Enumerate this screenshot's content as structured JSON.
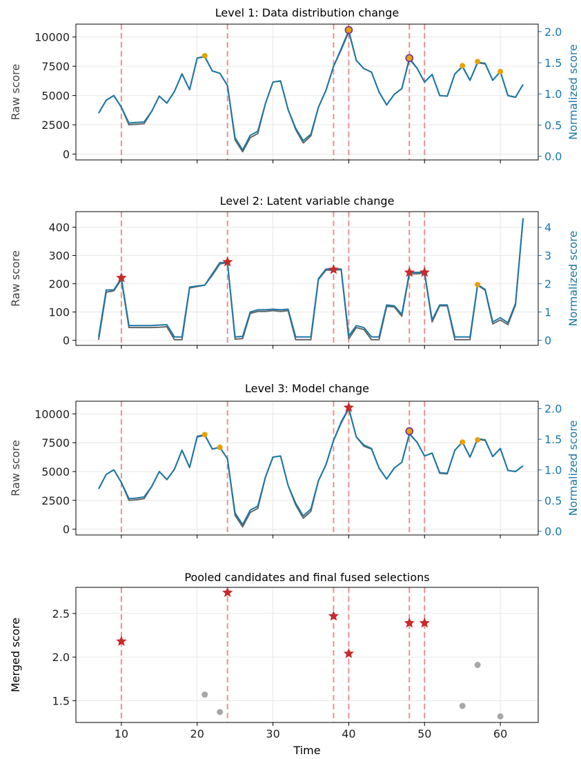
{
  "colors": {
    "score_line": "#1a78a8",
    "raw_line": "#666666",
    "right_axis": "#1a78a8",
    "candidate_marker": "#e8a100",
    "candidate_outline": "#6a2ea0",
    "star_marker": "#c92a2a",
    "vline": "#e89090",
    "gray_marker": "#a8a8a8"
  },
  "chart_data": [
    {
      "type": "line",
      "title": "Level 1: Data distribution change",
      "ylabel": "Raw score",
      "y2label": "Normalized score",
      "ylim": [
        -500,
        11100
      ],
      "y2lim": [
        -0.06,
        2.12
      ],
      "yticks": [
        "0",
        "2500",
        "5000",
        "7500",
        "10000"
      ],
      "y2ticks": [
        "0.0",
        "0.5",
        "1.0",
        "1.5",
        "2.0"
      ],
      "vlines": [
        10,
        24,
        38,
        40,
        48,
        50
      ],
      "x": [
        7,
        8,
        9,
        10,
        11,
        12,
        13,
        14,
        15,
        16,
        17,
        18,
        19,
        20,
        21,
        22,
        23,
        24,
        25,
        26,
        27,
        28,
        29,
        30,
        31,
        32,
        33,
        34,
        35,
        36,
        37,
        38,
        39,
        40,
        41,
        42,
        43,
        44,
        45,
        46,
        47,
        48,
        49,
        50,
        51,
        52,
        53,
        54,
        55,
        56,
        57,
        58,
        59,
        60,
        61,
        62,
        63
      ],
      "series": [
        {
          "values": [
            3500,
            4600,
            5000,
            4000,
            2650,
            2700,
            2750,
            3650,
            4950,
            4350,
            5350,
            6850,
            5500,
            8200,
            8350,
            7100,
            6900,
            5850,
            1400,
            350,
            1600,
            1950,
            4300,
            6150,
            6250,
            3800,
            2200,
            1150,
            1700,
            4000,
            5450,
            7500,
            9000,
            10550,
            8000,
            7300,
            7000,
            5300,
            4200,
            5100,
            5600,
            8200,
            7350,
            6150,
            6800,
            5000,
            4950,
            6850,
            7500,
            6300,
            7850,
            7750,
            6300,
            7050,
            5000,
            4850,
            5950
          ]
        },
        {
          "values": [
            3500,
            4600,
            5000,
            4000,
            2500,
            2550,
            2600,
            3650,
            4950,
            4350,
            5350,
            6850,
            5500,
            8200,
            8300,
            7100,
            6900,
            5850,
            1200,
            200,
            1400,
            1750,
            4300,
            6150,
            6250,
            3800,
            2100,
            950,
            1550,
            4000,
            5450,
            7500,
            8900,
            10450,
            8000,
            7300,
            7000,
            5300,
            4200,
            5100,
            5600,
            8100,
            7350,
            6150,
            6800,
            5000,
            4950,
            6850,
            7450,
            6300,
            7800,
            7700,
            6300,
            7050,
            5000,
            4850,
            5950
          ]
        }
      ],
      "dots": [
        [
          21,
          8400
        ],
        [
          40,
          10600
        ],
        [
          48,
          8200
        ],
        [
          55,
          7550
        ],
        [
          57,
          7900
        ],
        [
          60,
          7050
        ]
      ],
      "circled": [
        [
          40,
          10600
        ],
        [
          48,
          8200
        ]
      ],
      "stars": []
    },
    {
      "type": "line",
      "title": "Level 2: Latent variable change",
      "ylabel": "Raw score",
      "y2label": "Normalized score",
      "ylim": [
        -18,
        455
      ],
      "y2lim": [
        -0.18,
        4.55
      ],
      "yticks": [
        "0",
        "100",
        "200",
        "300",
        "400"
      ],
      "y2ticks": [
        "0",
        "1",
        "2",
        "3",
        "4"
      ],
      "vlines": [
        10,
        24,
        38,
        40,
        48,
        50
      ],
      "x": [
        7,
        8,
        9,
        10,
        11,
        12,
        13,
        14,
        15,
        16,
        17,
        18,
        19,
        20,
        21,
        22,
        23,
        24,
        25,
        26,
        27,
        28,
        29,
        30,
        31,
        32,
        33,
        34,
        35,
        36,
        37,
        38,
        39,
        40,
        41,
        42,
        43,
        44,
        45,
        46,
        47,
        48,
        49,
        50,
        51,
        52,
        53,
        54,
        55,
        56,
        57,
        58,
        59,
        60,
        61,
        62,
        63
      ],
      "series": [
        {
          "values": [
            12,
            178,
            178,
            220,
            52,
            52,
            52,
            52,
            54,
            55,
            12,
            12,
            188,
            192,
            195,
            235,
            275,
            275,
            12,
            14,
            100,
            108,
            108,
            110,
            108,
            110,
            12,
            12,
            12,
            218,
            252,
            252,
            252,
            15,
            52,
            45,
            12,
            12,
            125,
            122,
            92,
            240,
            240,
            240,
            72,
            125,
            125,
            12,
            12,
            12,
            197,
            180,
            65,
            80,
            62,
            130,
            432
          ]
        },
        {
          "values": [
            2,
            170,
            175,
            215,
            45,
            45,
            45,
            45,
            46,
            48,
            2,
            2,
            185,
            190,
            195,
            230,
            270,
            275,
            4,
            6,
            95,
            102,
            102,
            105,
            102,
            105,
            2,
            2,
            2,
            215,
            248,
            248,
            250,
            5,
            45,
            38,
            2,
            2,
            120,
            118,
            85,
            235,
            235,
            238,
            65,
            122,
            122,
            2,
            2,
            2,
            195,
            177,
            58,
            72,
            55,
            125,
            430
          ]
        }
      ],
      "dots": [
        [
          57,
          197
        ]
      ],
      "circled": [],
      "stars": [
        [
          10,
          221
        ],
        [
          24,
          277
        ],
        [
          38,
          250
        ],
        [
          48,
          240
        ],
        [
          50,
          240
        ]
      ]
    },
    {
      "type": "line",
      "title": "Level 3: Model change",
      "ylabel": "Raw score",
      "y2label": "Normalized score",
      "ylim": [
        -500,
        11100
      ],
      "y2lim": [
        -0.06,
        2.12
      ],
      "yticks": [
        "0",
        "2500",
        "5000",
        "7500",
        "10000"
      ],
      "y2ticks": [
        "0.0",
        "0.5",
        "1.0",
        "1.5",
        "2.0"
      ],
      "vlines": [
        10,
        24,
        38,
        40,
        48,
        50
      ],
      "x": [
        7,
        8,
        9,
        10,
        11,
        12,
        13,
        14,
        15,
        16,
        17,
        18,
        19,
        20,
        21,
        22,
        23,
        24,
        25,
        26,
        27,
        28,
        29,
        30,
        31,
        32,
        33,
        34,
        35,
        36,
        37,
        38,
        39,
        40,
        41,
        42,
        43,
        44,
        45,
        46,
        47,
        48,
        49,
        50,
        51,
        52,
        53,
        54,
        55,
        56,
        57,
        58,
        59,
        60,
        61,
        62,
        63
      ],
      "series": [
        {
          "values": [
            3500,
            4750,
            5150,
            4050,
            2650,
            2700,
            2800,
            3700,
            5000,
            4300,
            5200,
            6850,
            5350,
            8050,
            8200,
            6950,
            7100,
            6100,
            1400,
            400,
            1650,
            2000,
            4500,
            6250,
            6350,
            3800,
            2250,
            1150,
            1750,
            4200,
            5600,
            7700,
            9300,
            10500,
            8000,
            7300,
            7000,
            5300,
            4350,
            5300,
            5800,
            8300,
            7550,
            6350,
            6600,
            4900,
            4850,
            6850,
            7550,
            6250,
            7850,
            7750,
            6300,
            7000,
            5100,
            5000,
            5500
          ]
        },
        {
          "values": [
            3500,
            4750,
            5150,
            4050,
            2500,
            2550,
            2650,
            3700,
            5000,
            4300,
            5200,
            6850,
            5350,
            8000,
            8150,
            6950,
            7100,
            6100,
            1200,
            200,
            1450,
            1800,
            4500,
            6250,
            6350,
            3800,
            2100,
            950,
            1550,
            4200,
            5600,
            7700,
            9200,
            10450,
            8000,
            7200,
            6950,
            5300,
            4350,
            5300,
            5800,
            8250,
            7550,
            6350,
            6600,
            4850,
            4800,
            6850,
            7550,
            6250,
            7800,
            7700,
            6300,
            7000,
            5100,
            5000,
            5500
          ]
        }
      ],
      "dots": [
        [
          21,
          8200
        ],
        [
          23,
          7100
        ],
        [
          48,
          8500
        ],
        [
          55,
          7550
        ],
        [
          57,
          7750
        ]
      ],
      "circled": [
        [
          48,
          8500
        ]
      ],
      "stars": [
        [
          40,
          10550
        ]
      ]
    },
    {
      "type": "scatter",
      "title": "Pooled candidates and final fused selections",
      "xlabel": "Time",
      "ylabel": "Merged score",
      "xlim": [
        4,
        65
      ],
      "ylim": [
        1.25,
        2.8
      ],
      "xticks": [
        "10",
        "20",
        "30",
        "40",
        "50",
        "60"
      ],
      "yticks": [
        "1.5",
        "2.0",
        "2.5"
      ],
      "vlines": [
        10,
        24,
        38,
        40,
        48,
        50
      ],
      "stars": [
        [
          10,
          2.18
        ],
        [
          24,
          2.74
        ],
        [
          38,
          2.47
        ],
        [
          40,
          2.04
        ],
        [
          48,
          2.39
        ],
        [
          50,
          2.39
        ]
      ],
      "gray_points": [
        [
          21,
          1.57
        ],
        [
          23,
          1.37
        ],
        [
          55,
          1.44
        ],
        [
          57,
          1.91
        ],
        [
          60,
          1.32
        ]
      ]
    }
  ]
}
